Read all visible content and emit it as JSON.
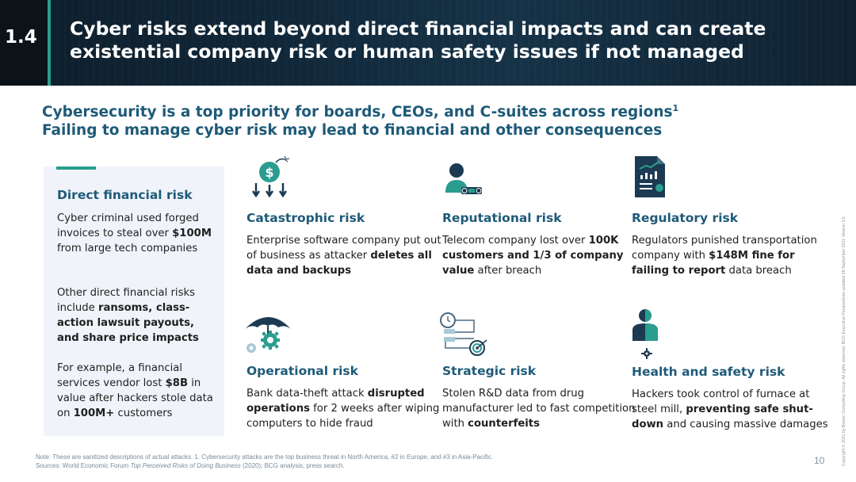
{
  "header": {
    "section_number": "1.4",
    "title_line1": "Cyber risks extend beyond direct financial impacts and can create",
    "title_line2": "existential company risk or human safety issues if not managed"
  },
  "subheading": {
    "line1": "Cybersecurity is a top priority for boards, CEOs, and C-suites across regions",
    "line1_sup": "1",
    "line2": "Failing to manage cyber risk may lead to financial and other consequences"
  },
  "direct_risk": {
    "title": "Direct financial risk",
    "p1": [
      "Cyber criminal used forged invoices to steal over ",
      "$100M",
      " from large tech companies"
    ],
    "p2": [
      "Other direct financial risks include ",
      "ransoms, class-action lawsuit payouts, and share price impacts",
      ""
    ],
    "p3": [
      "For example, a financial services vendor lost ",
      "$8B",
      " in value after hackers stole data on ",
      "100M+",
      " customers"
    ]
  },
  "risks": {
    "catastrophic": {
      "icon": "money-bomb-icon",
      "title": "Catastrophic risk",
      "text": [
        "Enterprise software company put out of business as attacker ",
        "deletes all data and backups",
        ""
      ]
    },
    "reputational": {
      "icon": "person-laptop-icon",
      "title": "Reputational risk",
      "text": [
        "Telecom company lost over ",
        "100K customers and 1/3 of company value",
        " after breach"
      ]
    },
    "regulatory": {
      "icon": "report-document-icon",
      "title": "Regulatory risk",
      "text": [
        "Regulators punished transportation company with ",
        "$148M fine for failing to report",
        " data breach"
      ]
    },
    "operational": {
      "icon": "umbrella-gear-icon",
      "title": "Operational risk",
      "text": [
        "Bank data-theft attack ",
        "disrupted operations",
        " for 2 weeks after wiping computers to hide fraud"
      ]
    },
    "strategic": {
      "icon": "strategy-target-icon",
      "title": "Strategic risk",
      "text": [
        "Stolen R&D data from drug manufacturer led to fast competition with ",
        "counterfeits",
        ""
      ]
    },
    "health": {
      "icon": "worker-gear-icon",
      "title": "Health and safety risk",
      "text": [
        "Hackers took control of furnace at steel mill, ",
        "preventing safe shut-down",
        " and causing massive damages"
      ]
    }
  },
  "footer": {
    "note_prefix": "Note: These are sanitized descriptions of actual attacks. 1. Cybersecurity attacks are the top business threat in North America, #2 in Europe, and #3 in Asia-Pacific.",
    "sources_prefix": "Sources: World Economic Forum ",
    "sources_italic": "Top Perceived Risks of Doing Business",
    "sources_suffix": " (2020); BCG analysis, press search.",
    "page_number": "10",
    "copyright": "Copyright © 2021 by Boston Consulting Group. All rights reserved. BCG Executive Perspectives updated 08 September 2021 Version 3.0"
  },
  "colors": {
    "accent": "#2a9d8f",
    "heading": "#1e5a78",
    "navy": "#1c3a52",
    "panel": "#f0f3f9"
  }
}
